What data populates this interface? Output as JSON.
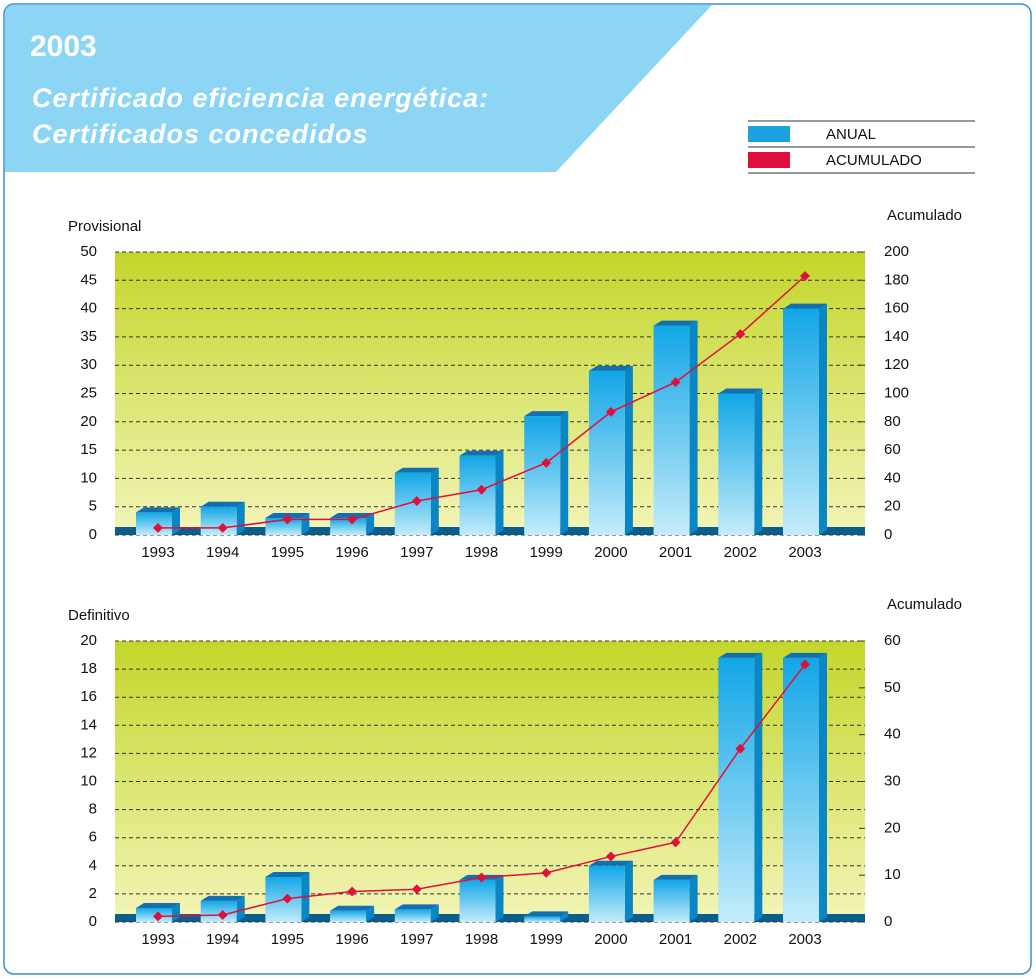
{
  "header": {
    "year": "2003",
    "title": "Certificado eficiencia energética:",
    "subtitle": "Certificados concedidos"
  },
  "chart_data": [
    {
      "type": "bar",
      "ylabel": "Provisional",
      "y2label": "Acumulado",
      "categories": [
        "1993",
        "1994",
        "1995",
        "1996",
        "1997",
        "1998",
        "1999",
        "2000",
        "2001",
        "2002",
        "2003"
      ],
      "series": [
        {
          "name": "ANUAL",
          "color": "#1aa3e0",
          "values": [
            4,
            5,
            3,
            3,
            11,
            14,
            21,
            29,
            37,
            25,
            40
          ]
        },
        {
          "name": "ACUMULADO",
          "color": "#e0103c",
          "axis": "y2",
          "values": [
            5,
            5,
            11,
            11,
            24,
            32,
            51,
            87,
            108,
            142,
            183
          ]
        }
      ],
      "ylim": [
        0,
        50
      ],
      "yticks": [
        0,
        5,
        10,
        15,
        20,
        25,
        30,
        35,
        40,
        45,
        50
      ],
      "y2lim": [
        0,
        200
      ],
      "y2ticks": [
        0,
        20,
        40,
        60,
        80,
        100,
        120,
        140,
        160,
        180,
        200
      ],
      "grid": true
    },
    {
      "type": "bar",
      "ylabel": "Definitivo",
      "y2label": "Acumulado",
      "categories": [
        "1993",
        "1994",
        "1995",
        "1996",
        "1997",
        "1998",
        "1999",
        "2000",
        "2001",
        "2002",
        "2003"
      ],
      "series": [
        {
          "color": "#1aa3e0",
          "values": [
            1,
            1.5,
            3.2,
            0.8,
            0.9,
            3,
            0.4,
            4,
            3,
            18.8,
            18.8
          ]
        },
        {
          "color": "#e0103c",
          "axis": "y2",
          "values": [
            1.2,
            1.5,
            5,
            6.5,
            7,
            9.5,
            10.5,
            14,
            17,
            37,
            55
          ]
        }
      ],
      "ylim": [
        0,
        20
      ],
      "yticks": [
        0,
        2,
        4,
        6,
        8,
        10,
        12,
        14,
        16,
        18,
        20
      ],
      "y2lim": [
        0,
        60
      ],
      "y2ticks": [
        0,
        10,
        20,
        30,
        40,
        50,
        60
      ],
      "grid": true
    }
  ]
}
